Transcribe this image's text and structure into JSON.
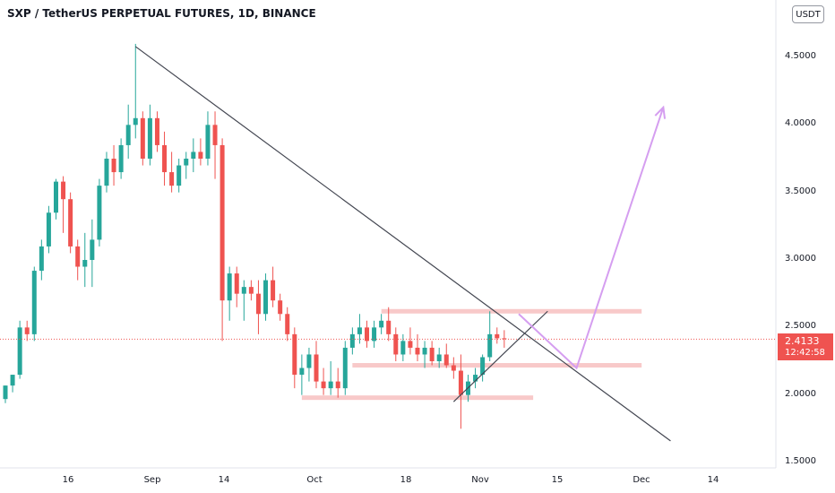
{
  "header": {
    "title": "SXP / TetherUS PERPETUAL FUTURES, 1D, BINANCE"
  },
  "price_axis": {
    "currency_label": "USDT"
  },
  "last_price": {
    "value": "2.4133",
    "countdown": "12:42:58"
  },
  "colors": {
    "up": "#26a69a",
    "down": "#ef5350",
    "zone": "#f8c9c9",
    "trendline": "#434651",
    "projection": "#d59ef0",
    "price_line": "#ef5350"
  },
  "chart_data": {
    "type": "candlestick",
    "title": "SXP / TetherUS PERPETUAL FUTURES, 1D, BINANCE",
    "x_ticks": [
      "16",
      "Sep",
      "14",
      "Oct",
      "18",
      "Nov",
      "15",
      "Dec",
      "14"
    ],
    "y_ticks": [
      "4.5000",
      "4.0000",
      "3.5000",
      "3.0000",
      "2.5000",
      "2.0000",
      "1.5000"
    ],
    "ylim": [
      1.5,
      4.66
    ],
    "grid": false,
    "last_price": 2.4133,
    "candles": [
      [
        1.97,
        2.07,
        1.94,
        2.07
      ],
      [
        2.07,
        2.15,
        2.02,
        2.15
      ],
      [
        2.15,
        2.55,
        2.12,
        2.5
      ],
      [
        2.5,
        2.55,
        2.4,
        2.45
      ],
      [
        2.45,
        2.95,
        2.4,
        2.92
      ],
      [
        2.92,
        3.15,
        2.85,
        3.1
      ],
      [
        3.1,
        3.4,
        3.05,
        3.35
      ],
      [
        3.35,
        3.6,
        3.3,
        3.58
      ],
      [
        3.58,
        3.62,
        3.2,
        3.45
      ],
      [
        3.45,
        3.5,
        3.05,
        3.1
      ],
      [
        3.1,
        3.15,
        2.85,
        2.95
      ],
      [
        2.95,
        3.2,
        2.8,
        3.0
      ],
      [
        3.0,
        3.3,
        2.8,
        3.15
      ],
      [
        3.15,
        3.6,
        3.1,
        3.55
      ],
      [
        3.55,
        3.8,
        3.5,
        3.75
      ],
      [
        3.75,
        3.85,
        3.55,
        3.65
      ],
      [
        3.65,
        3.9,
        3.6,
        3.85
      ],
      [
        3.85,
        4.15,
        3.75,
        4.0
      ],
      [
        4.0,
        4.6,
        3.9,
        4.05
      ],
      [
        4.05,
        4.1,
        3.7,
        3.75
      ],
      [
        3.75,
        4.15,
        3.7,
        4.05
      ],
      [
        4.05,
        4.1,
        3.8,
        3.85
      ],
      [
        3.85,
        3.95,
        3.55,
        3.65
      ],
      [
        3.65,
        3.8,
        3.5,
        3.55
      ],
      [
        3.55,
        3.75,
        3.5,
        3.7
      ],
      [
        3.7,
        3.8,
        3.6,
        3.75
      ],
      [
        3.75,
        3.9,
        3.65,
        3.8
      ],
      [
        3.8,
        3.9,
        3.7,
        3.75
      ],
      [
        3.75,
        4.1,
        3.7,
        4.0
      ],
      [
        4.0,
        4.1,
        3.6,
        3.85
      ],
      [
        3.85,
        3.9,
        2.4,
        2.7
      ],
      [
        2.7,
        2.95,
        2.55,
        2.9
      ],
      [
        2.9,
        2.95,
        2.65,
        2.75
      ],
      [
        2.75,
        2.85,
        2.55,
        2.8
      ],
      [
        2.8,
        2.85,
        2.7,
        2.75
      ],
      [
        2.75,
        2.85,
        2.45,
        2.6
      ],
      [
        2.6,
        2.9,
        2.55,
        2.85
      ],
      [
        2.85,
        2.95,
        2.65,
        2.7
      ],
      [
        2.7,
        2.75,
        2.55,
        2.6
      ],
      [
        2.6,
        2.65,
        2.4,
        2.45
      ],
      [
        2.45,
        2.5,
        2.05,
        2.15
      ],
      [
        2.15,
        2.3,
        2.0,
        2.2
      ],
      [
        2.2,
        2.35,
        2.1,
        2.3
      ],
      [
        2.3,
        2.4,
        2.05,
        2.1
      ],
      [
        2.1,
        2.2,
        2.0,
        2.05
      ],
      [
        2.05,
        2.25,
        2.0,
        2.1
      ],
      [
        2.1,
        2.2,
        1.98,
        2.05
      ],
      [
        2.05,
        2.4,
        2.0,
        2.35
      ],
      [
        2.35,
        2.5,
        2.3,
        2.45
      ],
      [
        2.45,
        2.6,
        2.38,
        2.5
      ],
      [
        2.5,
        2.55,
        2.35,
        2.4
      ],
      [
        2.4,
        2.55,
        2.35,
        2.5
      ],
      [
        2.5,
        2.6,
        2.45,
        2.55
      ],
      [
        2.55,
        2.65,
        2.4,
        2.45
      ],
      [
        2.45,
        2.5,
        2.25,
        2.3
      ],
      [
        2.3,
        2.45,
        2.25,
        2.4
      ],
      [
        2.4,
        2.5,
        2.3,
        2.35
      ],
      [
        2.35,
        2.45,
        2.25,
        2.3
      ],
      [
        2.3,
        2.4,
        2.2,
        2.35
      ],
      [
        2.35,
        2.4,
        2.22,
        2.25
      ],
      [
        2.25,
        2.35,
        2.2,
        2.3
      ],
      [
        2.3,
        2.38,
        2.2,
        2.22
      ],
      [
        2.22,
        2.28,
        2.12,
        2.18
      ],
      [
        2.18,
        2.3,
        1.75,
        2.0
      ],
      [
        2.0,
        2.15,
        1.95,
        2.1
      ],
      [
        2.1,
        2.2,
        2.05,
        2.15
      ],
      [
        2.15,
        2.3,
        2.1,
        2.28
      ],
      [
        2.28,
        2.62,
        2.25,
        2.45
      ],
      [
        2.45,
        2.5,
        2.38,
        2.42
      ],
      [
        2.42,
        2.48,
        2.35,
        2.4133
      ]
    ],
    "horizontal_zones": [
      {
        "from_index": 52,
        "to_index": 88,
        "price": 2.62
      },
      {
        "from_index": 48,
        "to_index": 88,
        "price": 2.22
      },
      {
        "from_index": 41,
        "to_index": 73,
        "price": 1.98
      }
    ],
    "trendline": {
      "from": {
        "index": 18,
        "price": 4.58
      },
      "to": {
        "index": 92,
        "price": 1.66
      }
    },
    "channel_line": {
      "from": {
        "index": 62,
        "price": 1.95
      },
      "to": {
        "index": 75,
        "price": 2.62
      }
    },
    "projection_path": [
      {
        "index": 71,
        "price": 2.6
      },
      {
        "index": 79,
        "price": 2.2
      },
      {
        "index": 91,
        "price": 4.13
      }
    ]
  }
}
